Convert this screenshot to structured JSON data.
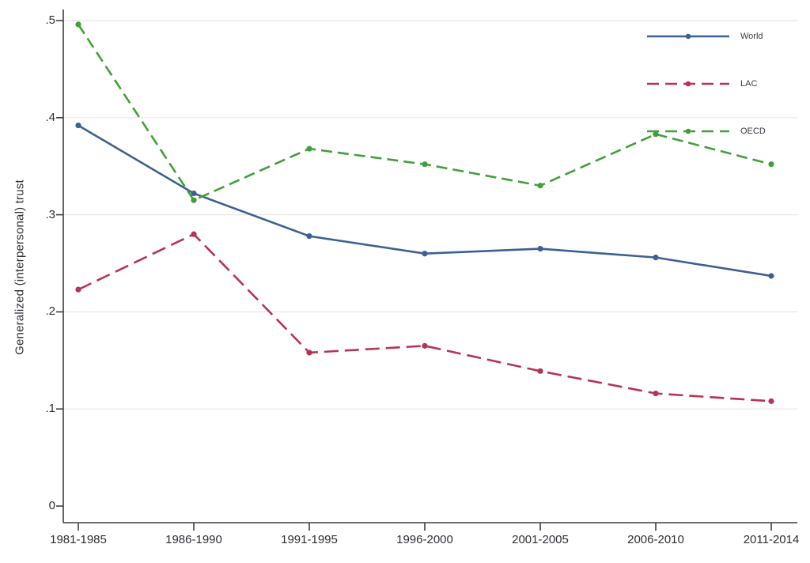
{
  "chart_data": {
    "type": "line",
    "title": "",
    "xlabel": "",
    "ylabel": "Generalized (interpersonal) trust",
    "ylim": [
      0,
      0.5
    ],
    "grid": "horizontal",
    "legend_position": "top-right-inside",
    "background": "#ffffff",
    "gridline_color": "#e7e7e7",
    "axis_color": "#3c3c44",
    "categories": [
      "1981-1985",
      "1986-1990",
      "1991-1995",
      "1996-2000",
      "2001-2005",
      "2006-2010",
      "2011-2014"
    ],
    "yticks": [
      0.5,
      0.4,
      0.3,
      0.2,
      0.1,
      0
    ],
    "ytick_labels": [
      ".5",
      ".4",
      ".3",
      ".2",
      ".1",
      "0"
    ],
    "series": [
      {
        "name": "World",
        "color": "#3c6190",
        "style": "solid",
        "dasharray": "",
        "marker": "circle",
        "values": [
          0.392,
          0.322,
          0.278,
          0.26,
          0.265,
          0.256,
          0.237
        ]
      },
      {
        "name": "LAC",
        "color": "#b73356",
        "style": "dashed",
        "dasharray": "18 8",
        "marker": "circle",
        "values": [
          0.223,
          0.28,
          0.158,
          0.165,
          0.139,
          0.116,
          0.108
        ]
      },
      {
        "name": "OECD",
        "color": "#41a038",
        "style": "dashed",
        "dasharray": "14 7",
        "marker": "circle",
        "values": [
          0.496,
          0.315,
          0.368,
          0.352,
          0.33,
          0.383,
          0.352
        ]
      }
    ]
  }
}
